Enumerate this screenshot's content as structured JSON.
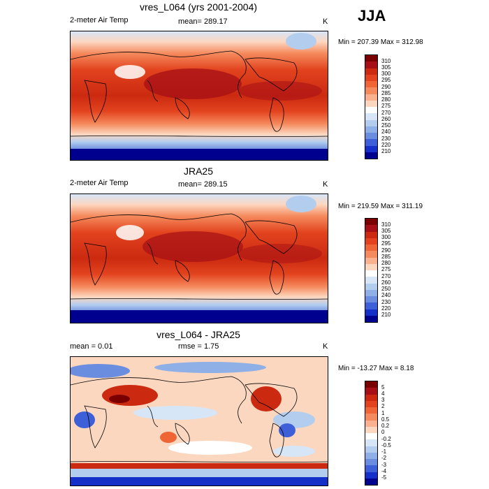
{
  "season": "JJA",
  "panels": [
    {
      "title": "vres_L064 (yrs 2001-2004)",
      "left_label": "2-meter Air Temp",
      "center_label": "mean= 289.17",
      "units": "K",
      "minmax": "Min = 207.39 Max = 312.98",
      "colorbar_labels": [
        "310",
        "305",
        "300",
        "295",
        "290",
        "285",
        "280",
        "275",
        "270",
        "260",
        "250",
        "240",
        "230",
        "220",
        "210"
      ]
    },
    {
      "title": "JRA25",
      "left_label": "2-meter Air Temp",
      "center_label": "mean= 289.15",
      "units": "K",
      "minmax": "Min = 219.59 Max = 311.19",
      "colorbar_labels": [
        "310",
        "305",
        "300",
        "295",
        "290",
        "285",
        "280",
        "275",
        "270",
        "260",
        "250",
        "240",
        "230",
        "220",
        "210"
      ]
    },
    {
      "title": "vres_L064 - JRA25",
      "left_label": "mean =   0.01",
      "center_label": "rmse =   1.75",
      "units": "K",
      "minmax": "Min = -13.27 Max =   8.18",
      "colorbar_labels": [
        "5",
        "4",
        "3",
        "2",
        "1",
        "0.5",
        "0.2",
        "0",
        "-0.2",
        "-0.5",
        "-1",
        "-2",
        "-3",
        "-4",
        "-5"
      ]
    }
  ],
  "colors": {
    "abs_scale": [
      "#7a0000",
      "#a50f15",
      "#cb2a10",
      "#e2431e",
      "#ef6535",
      "#f58a5d",
      "#f9b190",
      "#fcd7c0",
      "#ffffff",
      "#d6e6f7",
      "#b3cdef",
      "#8fb0e6",
      "#6a8de0",
      "#3d5fd8",
      "#1530c8",
      "#00008e"
    ],
    "diff_scale": [
      "#7a0000",
      "#a50f15",
      "#cb2a10",
      "#e2431e",
      "#ef6535",
      "#f58a5d",
      "#f9b190",
      "#fcd7c0",
      "#ffffff",
      "#d6e6f7",
      "#b3cdef",
      "#8fb0e6",
      "#6a8de0",
      "#3d5fd8",
      "#1530c8",
      "#00008e"
    ]
  }
}
